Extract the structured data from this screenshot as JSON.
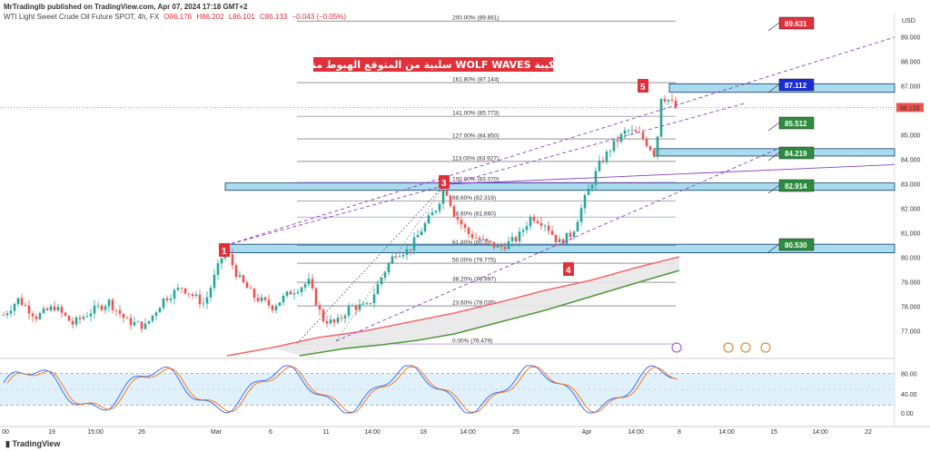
{
  "header": {
    "publisher": "MrTradinglb published on TradingView.com, Apr 07, 2024 17:18 GMT+2",
    "symbol": "WTI Light Sweet Crude Oil Future SPOT, 4h, FX",
    "o": "O86.176",
    "h": "H86.202",
    "l": "L86.101",
    "c": "C86.133",
    "chg": "−0.043 (−0.05%)",
    "currency": "USD"
  },
  "banner": "تركيبة WOLF WAVES سلبية من المتوقع الهبوط منها",
  "footer": {
    "logo": "TradingView"
  },
  "colors": {
    "up": "#26a69a",
    "down": "#ef5350",
    "zone": "#a9dcef",
    "zoneBorder": "#0d3b66",
    "red": "#e0313a",
    "green": "#2e8b3e",
    "blue": "#1c2bd6",
    "wolf": "#8a3fd1",
    "ema1": "#f26d6d",
    "ema2": "#4c9a3a"
  },
  "chart_data": {
    "type": "candlestick",
    "title": "",
    "y_axis": {
      "min": 76.0,
      "max": 90.0,
      "ticks": [
        "89.000",
        "88.000",
        "87.000",
        "86.133",
        "85.000",
        "84.000",
        "83.000",
        "82.000",
        "81.000",
        "80.000",
        "79.000",
        "78.000",
        "77.000"
      ]
    },
    "x_axis": {
      "ticks": [
        "00",
        "19",
        "15:00",
        "26",
        "Mar",
        "6",
        "11",
        "14:00",
        "18",
        "14:00",
        "25",
        "Apr",
        "14:00",
        "8",
        "14:00",
        "15",
        "14:00",
        "22"
      ]
    },
    "last_price": "86.133",
    "fib_levels": [
      {
        "label": "200.00% (89.661)",
        "value": 89.661
      },
      {
        "label": "161.80% (87.144)",
        "value": 87.144
      },
      {
        "label": "141.00% (85.773)",
        "value": 85.773
      },
      {
        "label": "127.00% (84.850)",
        "value": 84.85
      },
      {
        "label": "113.00% (83.927)",
        "value": 83.927
      },
      {
        "label": "100.00% (83.070)",
        "value": 83.07
      },
      {
        "label": "88.60% (82.319)",
        "value": 82.319
      },
      {
        "label": "78.60% (81.660)",
        "value": 81.66
      },
      {
        "label": "61.80% (80.5)",
        "value": 80.5
      },
      {
        "label": "50.00% (79.775)",
        "value": 79.775
      },
      {
        "label": "38.20% (78.997)",
        "value": 78.997
      },
      {
        "label": "23.60% (78.035)",
        "value": 78.035
      },
      {
        "label": "0.00% (76.479)",
        "value": 76.479
      }
    ],
    "zones": [
      {
        "top": 87.1,
        "bottom": 86.75
      },
      {
        "top": 84.45,
        "bottom": 84.15
      },
      {
        "top": 83.05,
        "bottom": 82.75
      },
      {
        "top": 80.55,
        "bottom": 80.2
      }
    ],
    "price_boxes": [
      {
        "label": "89.631",
        "value": 89.631,
        "color": "red"
      },
      {
        "label": "87.112",
        "value": 87.112,
        "color": "blue"
      },
      {
        "label": "85.512",
        "value": 85.512,
        "color": "green"
      },
      {
        "label": "84.219",
        "value": 84.219,
        "color": "green"
      },
      {
        "label": "82.914",
        "value": 82.914,
        "color": "green"
      },
      {
        "label": "80.530",
        "value": 80.53,
        "color": "green"
      }
    ],
    "waves": [
      {
        "label": "1",
        "value": 80.5
      },
      {
        "label": "3",
        "value": 83.0
      },
      {
        "label": "4",
        "value": 80.2
      },
      {
        "label": "5",
        "value": 87.1
      }
    ],
    "oscillator": {
      "levels": [
        "80.00",
        "40.00",
        "0.00"
      ],
      "upper": 80,
      "lower": 20
    }
  }
}
